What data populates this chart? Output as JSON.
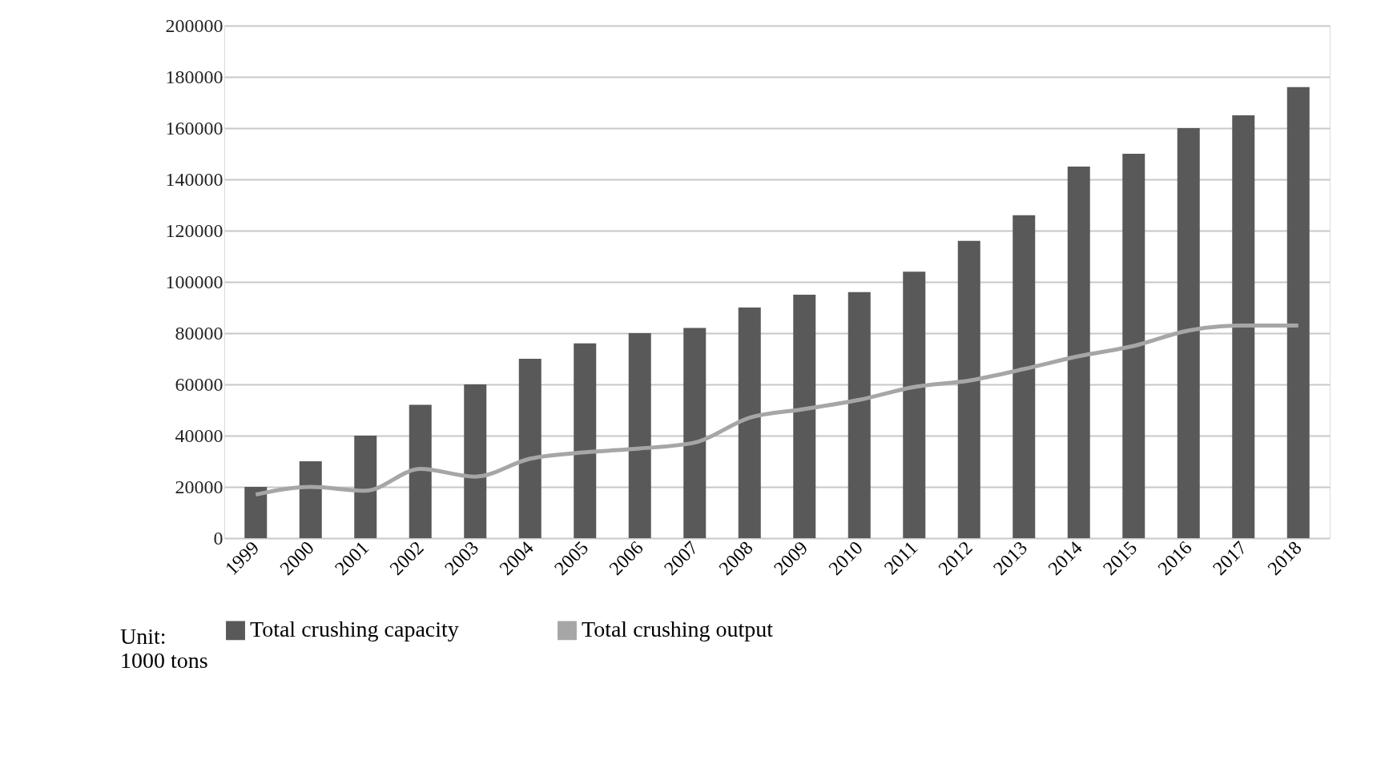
{
  "chart_data": {
    "type": "bar",
    "categories": [
      "1999",
      "2000",
      "2001",
      "2002",
      "2003",
      "2004",
      "2005",
      "2006",
      "2007",
      "2008",
      "2009",
      "2010",
      "2011",
      "2012",
      "2013",
      "2014",
      "2015",
      "2016",
      "2017",
      "2018"
    ],
    "series": [
      {
        "name": "Total crushing capacity",
        "color": "#595959",
        "values": [
          20000,
          30000,
          40000,
          52000,
          60000,
          70000,
          76000,
          80000,
          82000,
          90000,
          95000,
          96000,
          104000,
          116000,
          126000,
          145000,
          150000,
          160000,
          165000,
          176000
        ]
      },
      {
        "name": "Total crushing output",
        "type": "line",
        "color": "#a6a6a6",
        "values": [
          17000,
          20000,
          18500,
          27000,
          24000,
          31000,
          33500,
          35000,
          37300,
          47000,
          50400,
          54000,
          59000,
          61500,
          66000,
          71000,
          75000,
          81000,
          83000,
          83000
        ]
      }
    ],
    "ylim": [
      0,
      200000
    ],
    "yticks": [
      0,
      20000,
      40000,
      60000,
      80000,
      100000,
      120000,
      140000,
      160000,
      180000,
      200000
    ],
    "grid": "y",
    "legend": "bottom",
    "annotations": [
      "Unit:\n1000 tons"
    ]
  }
}
